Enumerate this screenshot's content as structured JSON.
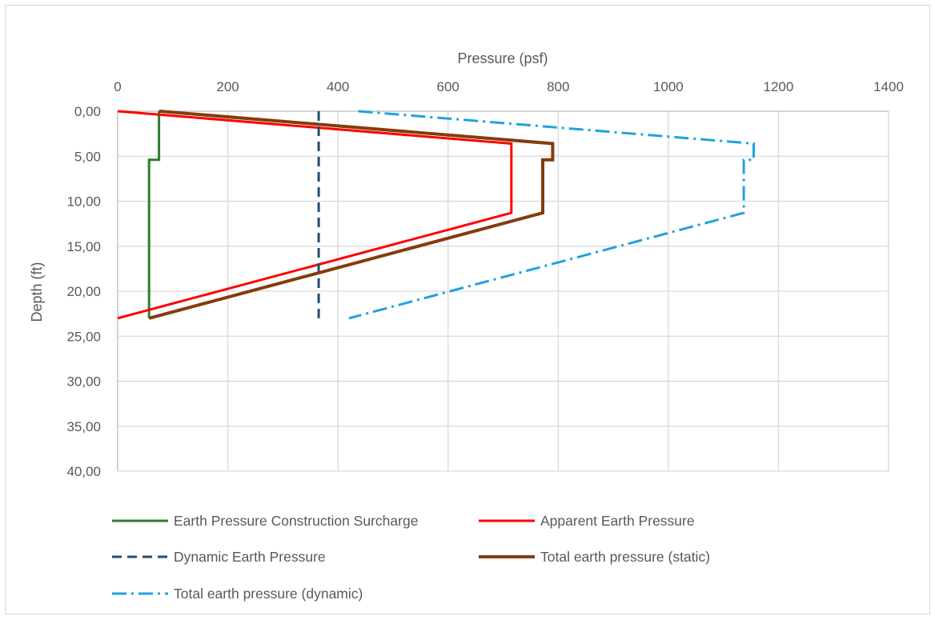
{
  "chart_data": {
    "type": "line",
    "title": "",
    "xlabel": "Pressure (psf)",
    "ylabel": "Depth (ft)",
    "x_axis_position": "top",
    "y_axis_inverted": true,
    "xlim": [
      0,
      1400
    ],
    "ylim": [
      0,
      40
    ],
    "x_ticks": [
      0,
      200,
      400,
      600,
      800,
      1000,
      1200,
      1400
    ],
    "x_tick_labels": [
      "0",
      "200",
      "400",
      "600",
      "800",
      "1000",
      "1200",
      "1400"
    ],
    "y_ticks": [
      0,
      5,
      10,
      15,
      20,
      25,
      30,
      35,
      40
    ],
    "y_tick_labels": [
      "0,00",
      "5,00",
      "10,00",
      "15,00",
      "20,00",
      "25,00",
      "30,00",
      "35,00",
      "40,00"
    ],
    "grid": true,
    "legend_position": "bottom",
    "series": [
      {
        "name": "Earth Pressure Construction Surcharge",
        "color": "#2e7d32",
        "style": "solid",
        "points": [
          [
            75,
            0
          ],
          [
            75,
            5.4
          ],
          [
            57,
            5.4
          ],
          [
            57,
            23
          ]
        ]
      },
      {
        "name": "Apparent Earth Pressure",
        "color": "#ff0000",
        "style": "solid",
        "points": [
          [
            0,
            0
          ],
          [
            715,
            3.6
          ],
          [
            715,
            11.3
          ],
          [
            0,
            23
          ]
        ]
      },
      {
        "name": "Dynamic Earth Pressure",
        "color": "#1f4e79",
        "style": "dash",
        "points": [
          [
            365,
            0
          ],
          [
            365,
            23
          ]
        ]
      },
      {
        "name": "Total earth pressure (static)",
        "color": "#843c0c",
        "style": "solid",
        "points": [
          [
            75,
            0
          ],
          [
            790,
            3.6
          ],
          [
            790,
            5.4
          ],
          [
            772,
            5.4
          ],
          [
            772,
            11.3
          ],
          [
            57,
            23
          ]
        ]
      },
      {
        "name": "Total earth pressure (dynamic)",
        "color": "#1fa3dc",
        "style": "dashdot",
        "points": [
          [
            437,
            0
          ],
          [
            1155,
            3.6
          ],
          [
            1155,
            5.4
          ],
          [
            1137,
            5.4
          ],
          [
            1137,
            11.3
          ],
          [
            420,
            23
          ]
        ]
      }
    ]
  }
}
